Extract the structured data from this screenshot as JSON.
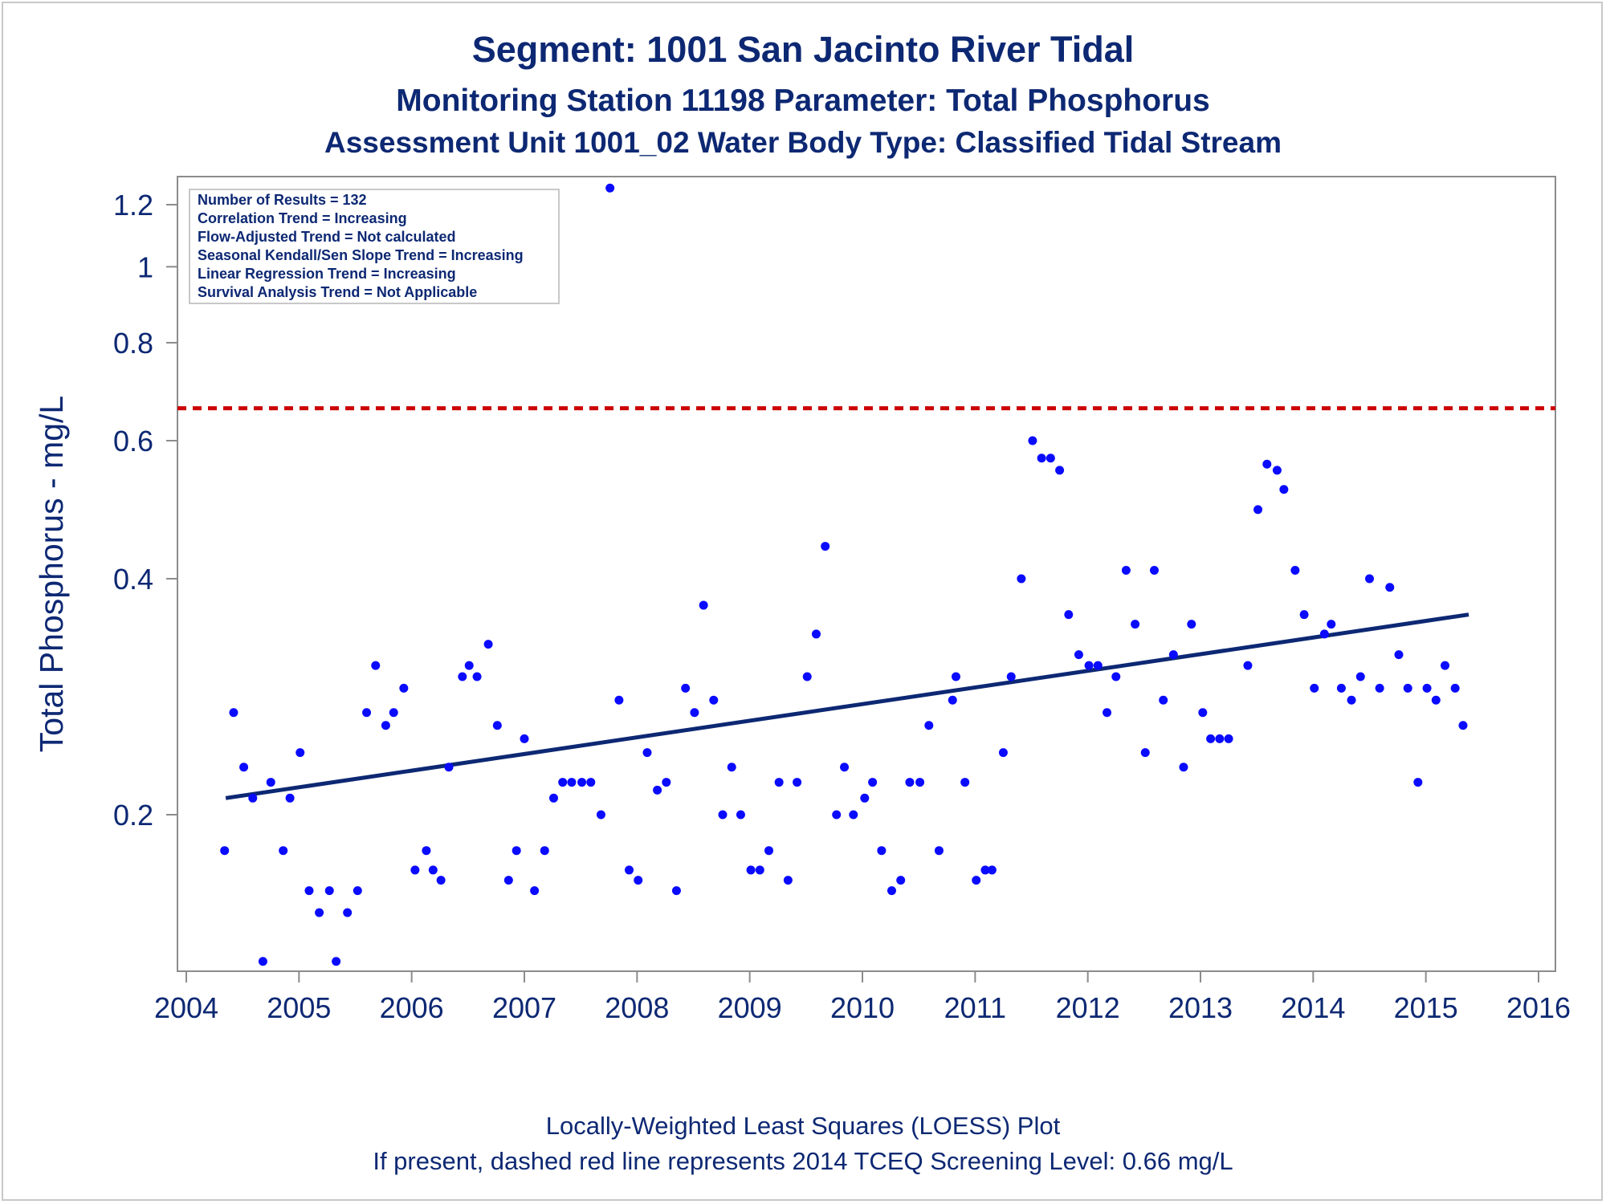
{
  "titles": {
    "line1": "Segment: 1001  San Jacinto River Tidal",
    "line2": "Monitoring Station 11198 Parameter: Total Phosphorus",
    "line3": "Assessment Unit 1001_02   Water Body Type: Classified Tidal Stream"
  },
  "stats_box": {
    "line1": "Number of Results = 132",
    "line2": "Correlation Trend = Increasing",
    "line3": "Flow-Adjusted Trend = Not calculated",
    "line4": "Seasonal Kendall/Sen Slope Trend = Increasing",
    "line5": "Linear Regression Trend = Increasing",
    "line6": "Survival Analysis Trend = Not Applicable"
  },
  "footer": {
    "line1": "Locally-Weighted Least Squares (LOESS) Plot",
    "line2": "If present, dashed red line represents 2014 TCEQ Screening Level: 0.66 mg/L"
  },
  "colors": {
    "text": "#0d2873",
    "points": "#0a0aff",
    "trend": "#0d2873",
    "screening": "#cc0000",
    "axis": "#8c8c8c"
  },
  "chart_data": {
    "type": "scatter",
    "title": "Segment: 1001  San Jacinto River Tidal",
    "xlabel": "",
    "ylabel": "Total Phosphorus - mg/L",
    "y_scale": "log",
    "xlim": [
      2004,
      2016
    ],
    "ylim": [
      0.12,
      1.3
    ],
    "x_ticks": [
      2004,
      2005,
      2006,
      2007,
      2008,
      2009,
      2010,
      2011,
      2012,
      2013,
      2014,
      2015,
      2016
    ],
    "x_tick_labels": [
      "2004",
      "2005",
      "2006",
      "2007",
      "2008",
      "2009",
      "2010",
      "2011",
      "2012",
      "2013",
      "2014",
      "2015",
      "2016"
    ],
    "y_ticks": [
      0.2,
      0.4,
      0.6,
      0.8,
      1,
      1.2
    ],
    "y_tick_labels": [
      "0.2",
      "0.4",
      "0.6",
      "0.8",
      "1",
      "1.2"
    ],
    "screening_level": 0.66,
    "trend_line": {
      "x": [
        2004.35,
        2015.38
      ],
      "y": [
        0.21,
        0.36
      ]
    },
    "series": [
      {
        "name": "",
        "x": [
          2004.34,
          2004.42,
          2004.51,
          2004.59,
          2004.68,
          2004.75,
          2004.86,
          2004.92,
          2005.01,
          2005.09,
          2005.18,
          2005.27,
          2005.33,
          2005.43,
          2005.52,
          2005.6,
          2005.68,
          2005.77,
          2005.84,
          2005.93,
          2006.03,
          2006.13,
          2006.19,
          2006.26,
          2006.33,
          2006.45,
          2006.51,
          2006.58,
          2006.68,
          2006.76,
          2006.86,
          2006.93,
          2007.0,
          2007.09,
          2007.18,
          2007.26,
          2007.34,
          2007.42,
          2007.51,
          2007.59,
          2007.68,
          2007.76,
          2007.84,
          2007.93,
          2008.01,
          2008.09,
          2008.18,
          2008.26,
          2008.35,
          2008.43,
          2008.51,
          2008.59,
          2008.68,
          2008.76,
          2008.84,
          2008.92,
          2009.01,
          2009.09,
          2009.17,
          2009.26,
          2009.34,
          2009.42,
          2009.51,
          2009.59,
          2009.67,
          2009.77,
          2009.84,
          2009.92,
          2010.02,
          2010.09,
          2010.17,
          2010.26,
          2010.34,
          2010.42,
          2010.51,
          2010.59,
          2010.68,
          2010.8,
          2010.83,
          2010.91,
          2011.01,
          2011.09,
          2011.15,
          2011.25,
          2011.32,
          2011.41,
          2011.51,
          2011.59,
          2011.67,
          2011.75,
          2011.83,
          2011.92,
          2012.01,
          2012.09,
          2012.17,
          2012.25,
          2012.34,
          2012.42,
          2012.51,
          2012.59,
          2012.67,
          2012.76,
          2012.85,
          2012.92,
          2013.02,
          2013.09,
          2013.17,
          2013.25,
          2013.42,
          2013.51,
          2013.59,
          2013.68,
          2013.74,
          2013.84,
          2013.92,
          2014.01,
          2014.1,
          2014.16,
          2014.25,
          2014.34,
          2014.42,
          2014.5,
          2014.59,
          2014.68,
          2014.76,
          2014.84,
          2014.93,
          2015.01,
          2015.09,
          2015.17,
          2015.26,
          2015.33
        ],
        "y": [
          0.18,
          0.27,
          0.23,
          0.21,
          0.13,
          0.22,
          0.18,
          0.21,
          0.24,
          0.16,
          0.15,
          0.16,
          0.13,
          0.15,
          0.16,
          0.27,
          0.31,
          0.26,
          0.27,
          0.29,
          0.17,
          0.18,
          0.17,
          0.165,
          0.23,
          0.3,
          0.31,
          0.3,
          0.33,
          0.26,
          0.165,
          0.18,
          0.25,
          0.16,
          0.18,
          0.21,
          0.22,
          0.22,
          0.22,
          0.22,
          0.2,
          1.26,
          0.28,
          0.17,
          0.165,
          0.24,
          0.215,
          0.22,
          0.16,
          0.29,
          0.27,
          0.37,
          0.28,
          0.2,
          0.23,
          0.2,
          0.17,
          0.17,
          0.18,
          0.22,
          0.165,
          0.22,
          0.3,
          0.34,
          0.44,
          0.2,
          0.23,
          0.2,
          0.21,
          0.22,
          0.18,
          0.16,
          0.165,
          0.22,
          0.22,
          0.26,
          0.18,
          0.28,
          0.3,
          0.22,
          0.165,
          0.17,
          0.17,
          0.24,
          0.3,
          0.4,
          0.6,
          0.57,
          0.57,
          0.55,
          0.36,
          0.32,
          0.31,
          0.31,
          0.27,
          0.3,
          0.41,
          0.35,
          0.24,
          0.41,
          0.28,
          0.32,
          0.23,
          0.35,
          0.27,
          0.25,
          0.25,
          0.25,
          0.31,
          0.49,
          0.56,
          0.55,
          0.52,
          0.41,
          0.36,
          0.29,
          0.34,
          0.35,
          0.29,
          0.28,
          0.3,
          0.4,
          0.29,
          0.39,
          0.32,
          0.29,
          0.22,
          0.29,
          0.28,
          0.31,
          0.29,
          0.26
        ]
      }
    ]
  }
}
